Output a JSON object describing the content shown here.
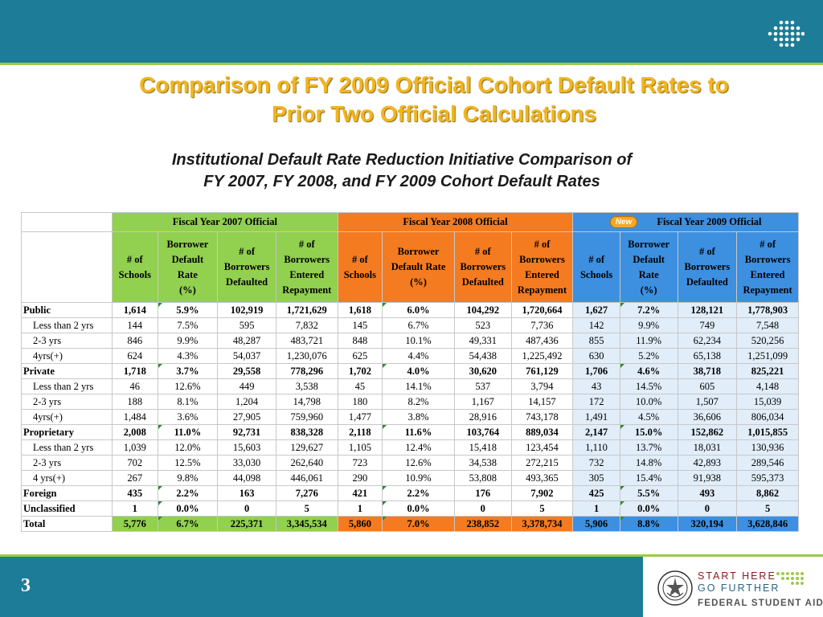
{
  "slide": {
    "title_lines": [
      "Comparison of FY 2009 Official Cohort Default Rates to",
      "Prior Two Official Calculations"
    ],
    "subtitle_lines": [
      "Institutional Default Rate Reduction Initiative Comparison of",
      "FY 2007, FY 2008, and FY 2009 Cohort Default Rates"
    ],
    "page_number": "3"
  },
  "colors": {
    "band": "#1d7c97",
    "accent_line": "#9dc94a",
    "title": "#f2b51d",
    "fy2007": "#92d050",
    "fy2008": "#f47b20",
    "fy2009": "#3d8fe0",
    "fy2009_light": "#e1edf9"
  },
  "table": {
    "groups": [
      "Fiscal Year 2007 Official",
      "Fiscal Year 2008 Official",
      "Fiscal Year 2009 Official"
    ],
    "new_badge": "New",
    "col_headers": [
      [
        "# of",
        "Schools"
      ],
      [
        "Borrower",
        "Default",
        "Rate",
        "(%)"
      ],
      [
        "# of",
        "Borrowers",
        "Defaulted"
      ],
      [
        "# of",
        "Borrowers",
        "Entered",
        "Repayment"
      ],
      [
        "# of",
        "Schools"
      ],
      [
        "Borrower",
        "Default Rate",
        "(%)"
      ],
      [
        "# of",
        "Borrowers",
        "Defaulted"
      ],
      [
        "# of",
        "Borrowers",
        "Entered",
        "Repayment"
      ],
      [
        "# of",
        "Schools"
      ],
      [
        "Borrower",
        "Default",
        "Rate",
        "(%)"
      ],
      [
        "# of",
        "Borrowers",
        "Defaulted"
      ],
      [
        "# of",
        "Borrowers",
        "Entered",
        "Repayment"
      ]
    ],
    "rows": [
      {
        "label": "Public",
        "level": 0,
        "values": [
          "1,614",
          "5.9%",
          "102,919",
          "1,721,629",
          "1,618",
          "6.0%",
          "104,292",
          "1,720,664",
          "1,627",
          "7.2%",
          "128,121",
          "1,778,903"
        ]
      },
      {
        "label": "Less than 2 yrs",
        "level": 1,
        "values": [
          "144",
          "7.5%",
          "595",
          "7,832",
          "145",
          "6.7%",
          "523",
          "7,736",
          "142",
          "9.9%",
          "749",
          "7,548"
        ]
      },
      {
        "label": "2-3 yrs",
        "level": 1,
        "values": [
          "846",
          "9.9%",
          "48,287",
          "483,721",
          "848",
          "10.1%",
          "49,331",
          "487,436",
          "855",
          "11.9%",
          "62,234",
          "520,256"
        ]
      },
      {
        "label": "4yrs(+)",
        "level": 1,
        "values": [
          "624",
          "4.3%",
          "54,037",
          "1,230,076",
          "625",
          "4.4%",
          "54,438",
          "1,225,492",
          "630",
          "5.2%",
          "65,138",
          "1,251,099"
        ]
      },
      {
        "label": "Private",
        "level": 0,
        "values": [
          "1,718",
          "3.7%",
          "29,558",
          "778,296",
          "1,702",
          "4.0%",
          "30,620",
          "761,129",
          "1,706",
          "4.6%",
          "38,718",
          "825,221"
        ]
      },
      {
        "label": "Less than 2 yrs",
        "level": 1,
        "values": [
          "46",
          "12.6%",
          "449",
          "3,538",
          "45",
          "14.1%",
          "537",
          "3,794",
          "43",
          "14.5%",
          "605",
          "4,148"
        ]
      },
      {
        "label": "2-3 yrs",
        "level": 1,
        "values": [
          "188",
          "8.1%",
          "1,204",
          "14,798",
          "180",
          "8.2%",
          "1,167",
          "14,157",
          "172",
          "10.0%",
          "1,507",
          "15,039"
        ]
      },
      {
        "label": "4yrs(+)",
        "level": 1,
        "values": [
          "1,484",
          "3.6%",
          "27,905",
          "759,960",
          "1,477",
          "3.8%",
          "28,916",
          "743,178",
          "1,491",
          "4.5%",
          "36,606",
          "806,034"
        ]
      },
      {
        "label": "Proprietary",
        "level": 0,
        "values": [
          "2,008",
          "11.0%",
          "92,731",
          "838,328",
          "2,118",
          "11.6%",
          "103,764",
          "889,034",
          "2,147",
          "15.0%",
          "152,862",
          "1,015,855"
        ]
      },
      {
        "label": "Less than 2 yrs",
        "level": 1,
        "values": [
          "1,039",
          "12.0%",
          "15,603",
          "129,627",
          "1,105",
          "12.4%",
          "15,418",
          "123,454",
          "1,110",
          "13.7%",
          "18,031",
          "130,936"
        ]
      },
      {
        "label": "2-3 yrs",
        "level": 1,
        "values": [
          "702",
          "12.5%",
          "33,030",
          "262,640",
          "723",
          "12.6%",
          "34,538",
          "272,215",
          "732",
          "14.8%",
          "42,893",
          "289,546"
        ]
      },
      {
        "label": "4 yrs(+)",
        "level": 1,
        "values": [
          "267",
          "9.8%",
          "44,098",
          "446,061",
          "290",
          "10.9%",
          "53,808",
          "493,365",
          "305",
          "15.4%",
          "91,938",
          "595,373"
        ]
      },
      {
        "label": "Foreign",
        "level": 0,
        "values": [
          "435",
          "2.2%",
          "163",
          "7,276",
          "421",
          "2.2%",
          "176",
          "7,902",
          "425",
          "5.5%",
          "493",
          "8,862"
        ]
      },
      {
        "label": "Unclassified",
        "level": 0,
        "values": [
          "1",
          "0.0%",
          "0",
          "5",
          "1",
          "0.0%",
          "0",
          "5",
          "1",
          "0.0%",
          "0",
          "5"
        ]
      },
      {
        "label": "Total",
        "level": 0,
        "total": true,
        "values": [
          "5,776",
          "6.7%",
          "225,371",
          "3,345,534",
          "5,860",
          "7.0%",
          "238,852",
          "3,378,734",
          "5,906",
          "8.8%",
          "320,194",
          "3,628,846"
        ]
      }
    ]
  },
  "footer": {
    "logo_line1": "START HERE",
    "logo_line2": "GO FURTHER",
    "logo_line3": "FEDERAL STUDENT AID",
    "logo_mark": "™",
    "logo_icon": "department-of-education-seal-icon"
  }
}
